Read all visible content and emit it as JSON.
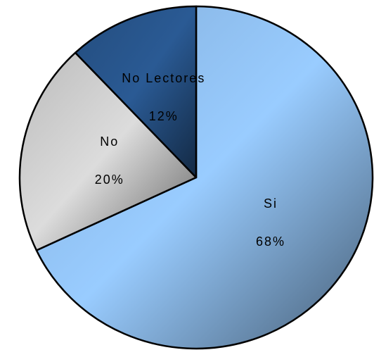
{
  "chart_data": {
    "type": "pie",
    "categories": [
      "Si",
      "No",
      "No Lectores"
    ],
    "values": [
      68,
      20,
      12
    ],
    "value_labels": [
      "68%",
      "20%",
      "12%"
    ],
    "colors": [
      "#99ccff",
      "#dcdcdc",
      "#2a5a94"
    ]
  }
}
